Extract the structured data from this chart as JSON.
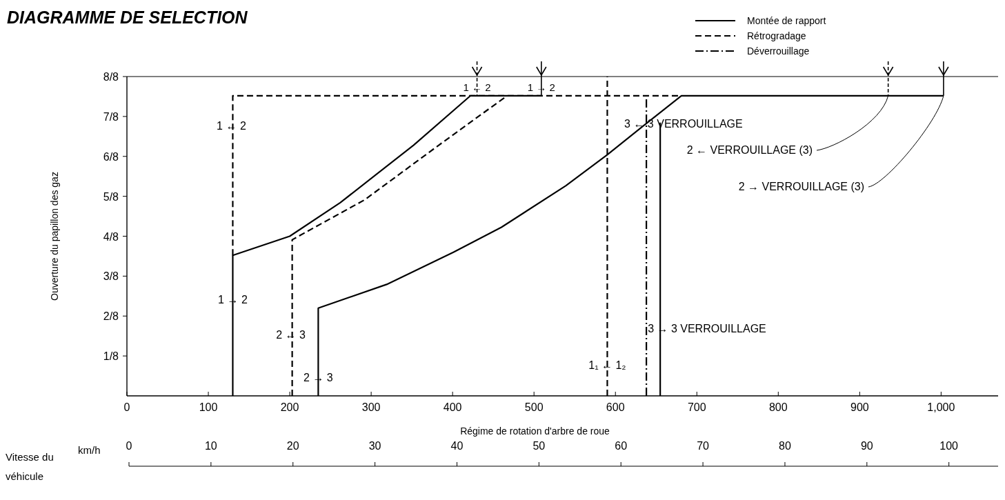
{
  "chart_data": {
    "type": "line",
    "title": "DIAGRAMME DE SELECTION",
    "xlabel": "Régime de rotation d'arbre de roue",
    "ylabel": "Ouverture du papillon des gaz",
    "x2label": "Vitesse du véhicule",
    "xlim": [
      0,
      1070
    ],
    "xticks": [
      0,
      100,
      200,
      300,
      400,
      500,
      600,
      700,
      800,
      900,
      {
        "value": 1000,
        "label": "1,000"
      }
    ],
    "ylim": [
      0,
      1
    ],
    "yticks": [
      {
        "value": 0.125,
        "label": "1/8"
      },
      {
        "value": 0.25,
        "label": "2/8"
      },
      {
        "value": 0.375,
        "label": "3/8"
      },
      {
        "value": 0.5,
        "label": "4/8"
      },
      {
        "value": 0.625,
        "label": "5/8"
      },
      {
        "value": 0.75,
        "label": "6/8"
      },
      {
        "value": 0.875,
        "label": "7/8"
      },
      {
        "value": 1,
        "label": "8/8"
      }
    ],
    "x2lim": [
      0,
      106
    ],
    "x2ticks": [
      0,
      10,
      20,
      30,
      40,
      50,
      60,
      70,
      80,
      90,
      100
    ],
    "grid": false,
    "legend": "top right",
    "marker": "none",
    "series": [
      {
        "name": "Montée de rapport",
        "color": "#000000",
        "line_style": "solid",
        "x": [
          130,
          130,
          200,
          262,
          352,
          422,
          509
        ],
        "values": [
          0,
          0.44,
          0.5,
          0.605,
          0.785,
          0.94,
          0.94
        ]
      },
      {
        "name": "Rétrogradage",
        "color": "#000000",
        "line_style": "dashed",
        "x": [
          130,
          130,
          681
        ],
        "values": [
          0.44,
          0.94,
          0.94
        ]
      },
      {
        "name": "Déverrouillage",
        "color": "#000000",
        "line_style": "dashdot",
        "x": [
          638,
          638
        ],
        "values": [
          0,
          0.94
        ]
      },
      {
        "color": "#000000",
        "line_style": "solid",
        "x": [
          235,
          235,
          319,
          401,
          460,
          539,
          590,
          632,
          681,
          1003
        ],
        "values": [
          0,
          0.275,
          0.349,
          0.45,
          0.528,
          0.658,
          0.755,
          0.841,
          0.94,
          0.94
        ]
      },
      {
        "color": "#000000",
        "line_style": "solid",
        "x": [
          655,
          655
        ],
        "values": [
          0,
          0.856
        ]
      },
      {
        "color": "#000000",
        "line_style": "dashed",
        "x": [
          203,
          203,
          292,
          383,
          467
        ],
        "values": [
          0,
          0.489,
          0.614,
          0.785,
          0.94
        ]
      },
      {
        "color": "#000000",
        "line_style": "dashed",
        "x": [
          590,
          590
        ],
        "values": [
          0,
          1
        ]
      }
    ],
    "annotations": [
      {
        "text": "1 ← 2",
        "x": 130,
        "y": 0.844
      },
      {
        "text": "1 → 2",
        "x": 130,
        "y": 0.3
      },
      {
        "text": "2 ← 3",
        "x": 203,
        "y": 0.19
      },
      {
        "text": "2 → 3",
        "x": 235,
        "y": 0.056
      },
      {
        "text": "1₁ ← 1₂",
        "x": 590,
        "y": 0.094
      },
      {
        "text": "3 ← 3 VERROUILLAGE",
        "x": 638,
        "y": 0.85
      },
      {
        "text": "3 → 3 VERROUILLAGE",
        "x": 655,
        "y": 0.21
      },
      {
        "text": "1 ← 2",
        "x": 430,
        "y": 0.94
      },
      {
        "text": "1 → 2",
        "x": 509,
        "y": 0.94
      },
      {
        "text": "2 ← VERROUILLAGE (3)",
        "x": 935,
        "y": 0.94
      },
      {
        "text": "2 → VERROUILLAGE (3)",
        "x": 1003,
        "y": 0.94
      },
      "km/h"
    ]
  }
}
